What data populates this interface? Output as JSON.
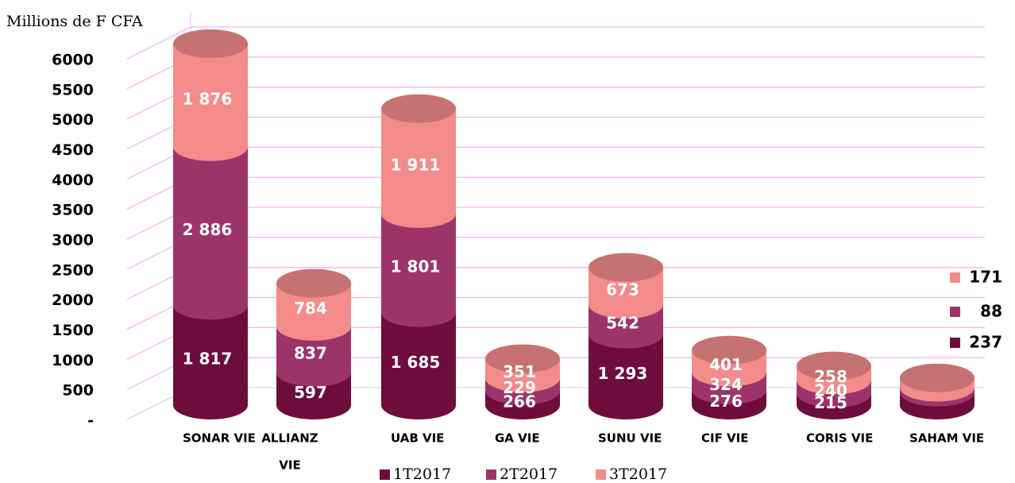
{
  "chart_data": {
    "type": "bar3d-stacked",
    "y_axis_label": "Millions de F CFA",
    "categories": [
      [
        "SONAR VIE"
      ],
      [
        "ALLIANZ",
        "VIE"
      ],
      [
        "UAB VIE"
      ],
      [
        "GA VIE"
      ],
      [
        "SUNU VIE"
      ],
      [
        "CIF VIE"
      ],
      [
        "CORIS VIE"
      ],
      [
        "SAHAM VIE"
      ]
    ],
    "series": [
      {
        "name": "1T2017",
        "color": "#6e0d3b",
        "values": [
          1817,
          597,
          1685,
          266,
          1293,
          276,
          215,
          237
        ],
        "value_labels": [
          "1 817",
          "597",
          "1 685",
          "266",
          "1 293",
          "276",
          "215",
          "237"
        ]
      },
      {
        "name": "2T2017",
        "color": "#9c3469",
        "values": [
          2886,
          837,
          1801,
          229,
          542,
          324,
          240,
          88
        ],
        "value_labels": [
          "2 886",
          "837",
          "1 801",
          "229",
          "542",
          "324",
          "240",
          "88"
        ]
      },
      {
        "name": "3T2017",
        "color": "#f38b8b",
        "values": [
          1876,
          784,
          1911,
          351,
          673,
          401,
          258,
          171
        ],
        "value_labels": [
          "1 876",
          "784",
          "1 911",
          "351",
          "673",
          "401",
          "258",
          "171"
        ]
      }
    ],
    "ylim": [
      0,
      6000
    ],
    "yticks": [
      {
        "value": 0,
        "label": "-"
      },
      500,
      1000,
      1500,
      2000,
      2500,
      3000,
      3500,
      4000,
      4500,
      5000,
      5500,
      6000
    ],
    "yticks_labels": [
      "-",
      "500",
      "1 000",
      "1 500",
      "2 000",
      "2 500",
      "3 000",
      "3 500",
      "4 000",
      "4 500",
      "5 000",
      "5 500",
      "6 000"
    ],
    "grid": true
  }
}
